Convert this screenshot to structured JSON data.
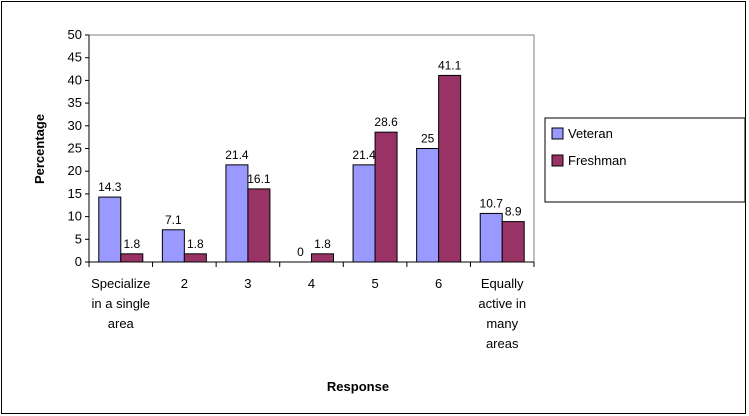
{
  "chart_data": {
    "type": "bar",
    "title": "",
    "xlabel": "Response",
    "ylabel": "Percentage",
    "ylim": [
      0,
      50
    ],
    "ytick_step": 5,
    "grid": false,
    "legend_position": "right",
    "categories": [
      [
        "Specialize",
        "in a single",
        "area"
      ],
      [
        "2"
      ],
      [
        "3"
      ],
      [
        "4"
      ],
      [
        "5"
      ],
      [
        "6"
      ],
      [
        "Equally",
        "active in",
        "many",
        "areas"
      ]
    ],
    "series": [
      {
        "name": "Veteran",
        "color": "#9999ff",
        "values": [
          14.3,
          7.1,
          21.4,
          0,
          21.4,
          25,
          10.7
        ]
      },
      {
        "name": "Freshman",
        "color": "#993366",
        "values": [
          1.8,
          1.8,
          16.1,
          1.8,
          28.6,
          41.1,
          8.9
        ]
      }
    ],
    "value_labels": [
      [
        "14.3",
        "7.1",
        "21.4",
        "0",
        "21.4",
        "25",
        "10.7"
      ],
      [
        "1.8",
        "1.8",
        "16.1",
        "1.8",
        "28.6",
        "41.1",
        "8.9"
      ]
    ]
  }
}
